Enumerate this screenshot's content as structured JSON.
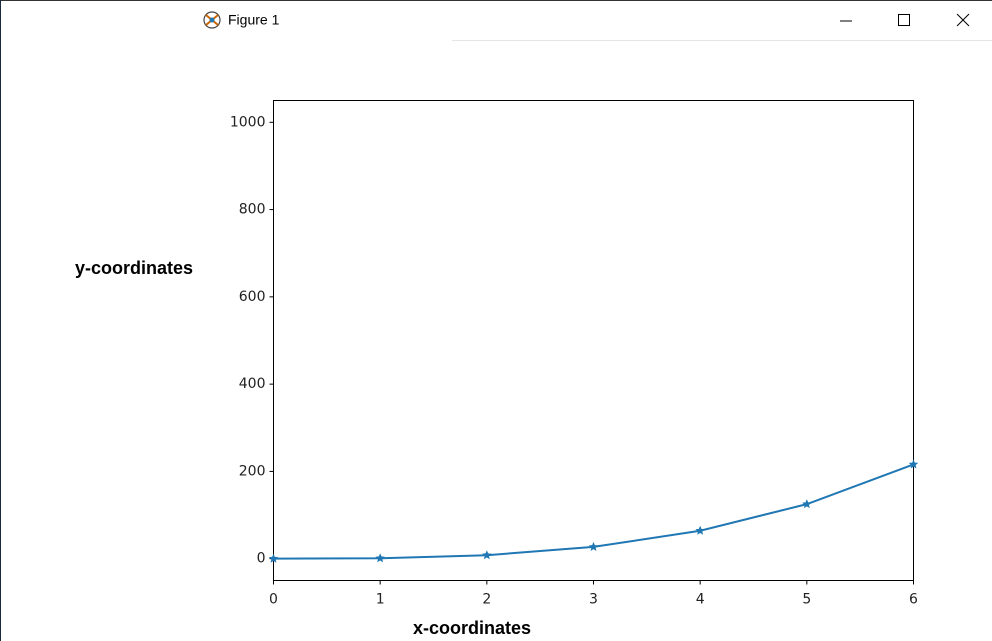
{
  "window": {
    "title": "Figure 1"
  },
  "chart_data": {
    "type": "line",
    "x": [
      0,
      1,
      2,
      3,
      4,
      5,
      6
    ],
    "values": [
      0,
      1,
      8,
      27,
      64,
      125,
      216
    ],
    "color": "#1f77b4",
    "marker": "star",
    "xlabel": "x-coordinates",
    "ylabel": "y-coordinates",
    "xlim": [
      0,
      6
    ],
    "xticks": [
      0,
      1,
      2,
      3,
      4,
      5,
      6
    ],
    "ylim": [
      -50,
      1050
    ],
    "yticks": [
      0,
      200,
      400,
      600,
      800,
      1000
    ]
  }
}
